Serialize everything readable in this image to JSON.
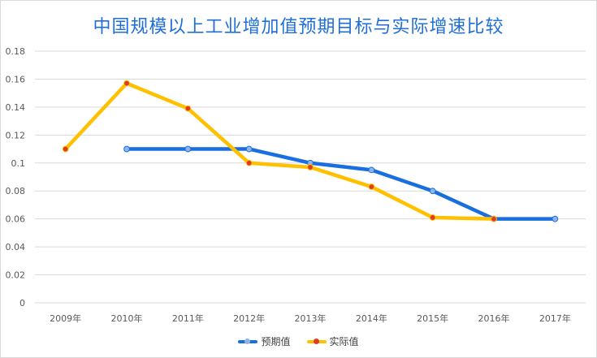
{
  "chart_data": {
    "type": "line",
    "title": "中国规模以上工业增加值预期目标与实际增速比较",
    "categories": [
      "2009年",
      "2010年",
      "2011年",
      "2012年",
      "2013年",
      "2014年",
      "2015年",
      "2016年",
      "2017年"
    ],
    "series": [
      {
        "name": "预期值",
        "color": "#1a6fe0",
        "marker_color": "#8fb5e8",
        "values": [
          null,
          0.11,
          0.11,
          0.11,
          0.1,
          0.095,
          0.08,
          0.06,
          0.06
        ]
      },
      {
        "name": "实际值",
        "color": "#ffc000",
        "marker_color": "#e03b24",
        "values": [
          0.11,
          0.157,
          0.139,
          0.1,
          0.097,
          0.083,
          0.061,
          0.06,
          null
        ]
      }
    ],
    "y_ticks": [
      "0",
      "0.02",
      "0.04",
      "0.06",
      "0.08",
      "0.1",
      "0.12",
      "0.14",
      "0.16",
      "0.18"
    ],
    "ylim": [
      0,
      0.18
    ],
    "grid": true,
    "legend_position": "bottom"
  }
}
